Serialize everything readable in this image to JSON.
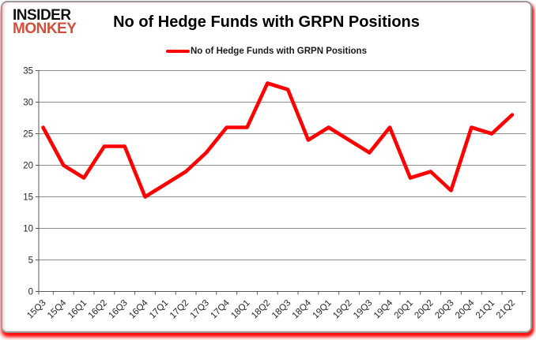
{
  "logo": {
    "line1": "INSIDER",
    "line2": "MONKEY"
  },
  "header": {
    "title": "No of Hedge Funds with GRPN Positions"
  },
  "legend": {
    "label": "No of Hedge Funds with GRPN Positions"
  },
  "chart_data": {
    "type": "line",
    "title": "No of Hedge Funds with GRPN Positions",
    "categories": [
      "15Q3",
      "15Q4",
      "16Q1",
      "16Q2",
      "16Q3",
      "16Q4",
      "17Q1",
      "17Q2",
      "17Q3",
      "17Q4",
      "18Q1",
      "18Q2",
      "18Q3",
      "18Q4",
      "19Q1",
      "19Q2",
      "19Q3",
      "19Q4",
      "20Q1",
      "20Q2",
      "20Q3",
      "20Q4",
      "21Q1",
      "21Q2"
    ],
    "series": [
      {
        "name": "No of Hedge Funds with GRPN Positions",
        "values": [
          26,
          20,
          18,
          23,
          23,
          15,
          17,
          19,
          22,
          26,
          26,
          33,
          32,
          24,
          26,
          24,
          22,
          26,
          18,
          19,
          16,
          26,
          25,
          28
        ],
        "color": "#ff0000"
      }
    ],
    "xlabel": "",
    "ylabel": "",
    "ylim": [
      0,
      35
    ],
    "ytick_interval": 5,
    "grid": true,
    "legend_position": "top-center",
    "x_label_rotation_deg": -45
  },
  "colors": {
    "series_red": "#ff0000",
    "logo_red": "#d34f3a",
    "logo_black": "#111111",
    "gridline": "#8c8c8c",
    "axis": "#595959",
    "tick_label": "#262626",
    "card_border": "#9b9b9b",
    "glow_red": "#ff1a1a",
    "background": "#ffffff"
  }
}
